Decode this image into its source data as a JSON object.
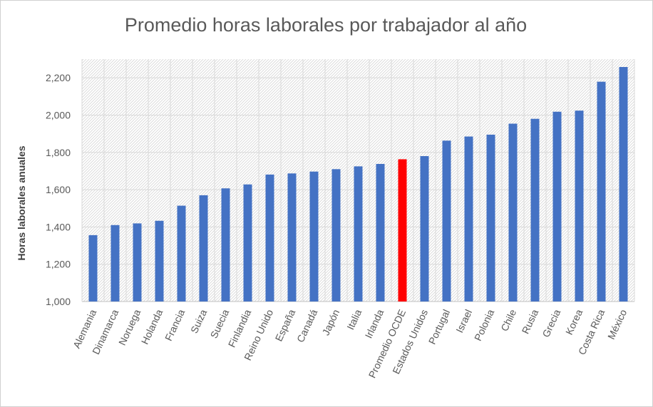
{
  "chart_data": {
    "type": "bar",
    "title": "Promedio horas laborales por trabajador al año",
    "xlabel": "",
    "ylabel": "Horas laborales anuales",
    "ylim": [
      1000,
      2300
    ],
    "yticks": [
      1000,
      1200,
      1400,
      1600,
      1800,
      2000,
      2200
    ],
    "ytick_labels": [
      "1,000",
      "1,200",
      "1,400",
      "1,600",
      "1,800",
      "2,000",
      "2,200"
    ],
    "categories": [
      "Alemania",
      "Dinamarca",
      "Noruega",
      "Holanda",
      "Francia",
      "Suiza",
      "Suecia",
      "Finlandia",
      "Reino Unido",
      "España",
      "Canadá",
      "Japón",
      "Italia",
      "Irlanda",
      "Promedio OCDE",
      "Estados Unidos",
      "Portugal",
      "Israel",
      "Polonia",
      "Chile",
      "Rusia",
      "Grecia",
      "Korea",
      "Costa Rica",
      "México"
    ],
    "values": [
      1356,
      1410,
      1419,
      1433,
      1514,
      1570,
      1607,
      1628,
      1681,
      1687,
      1697,
      1710,
      1725,
      1738,
      1763,
      1780,
      1863,
      1885,
      1895,
      1954,
      1980,
      2018,
      2024,
      2179,
      2258
    ],
    "colors": {
      "default": "#4472c4",
      "highlight": "#ff0000",
      "grid": "#d9d9d9",
      "axis": "#bfbfbf"
    },
    "highlight_category": "Promedio OCDE",
    "grid": true,
    "legend": "none"
  }
}
